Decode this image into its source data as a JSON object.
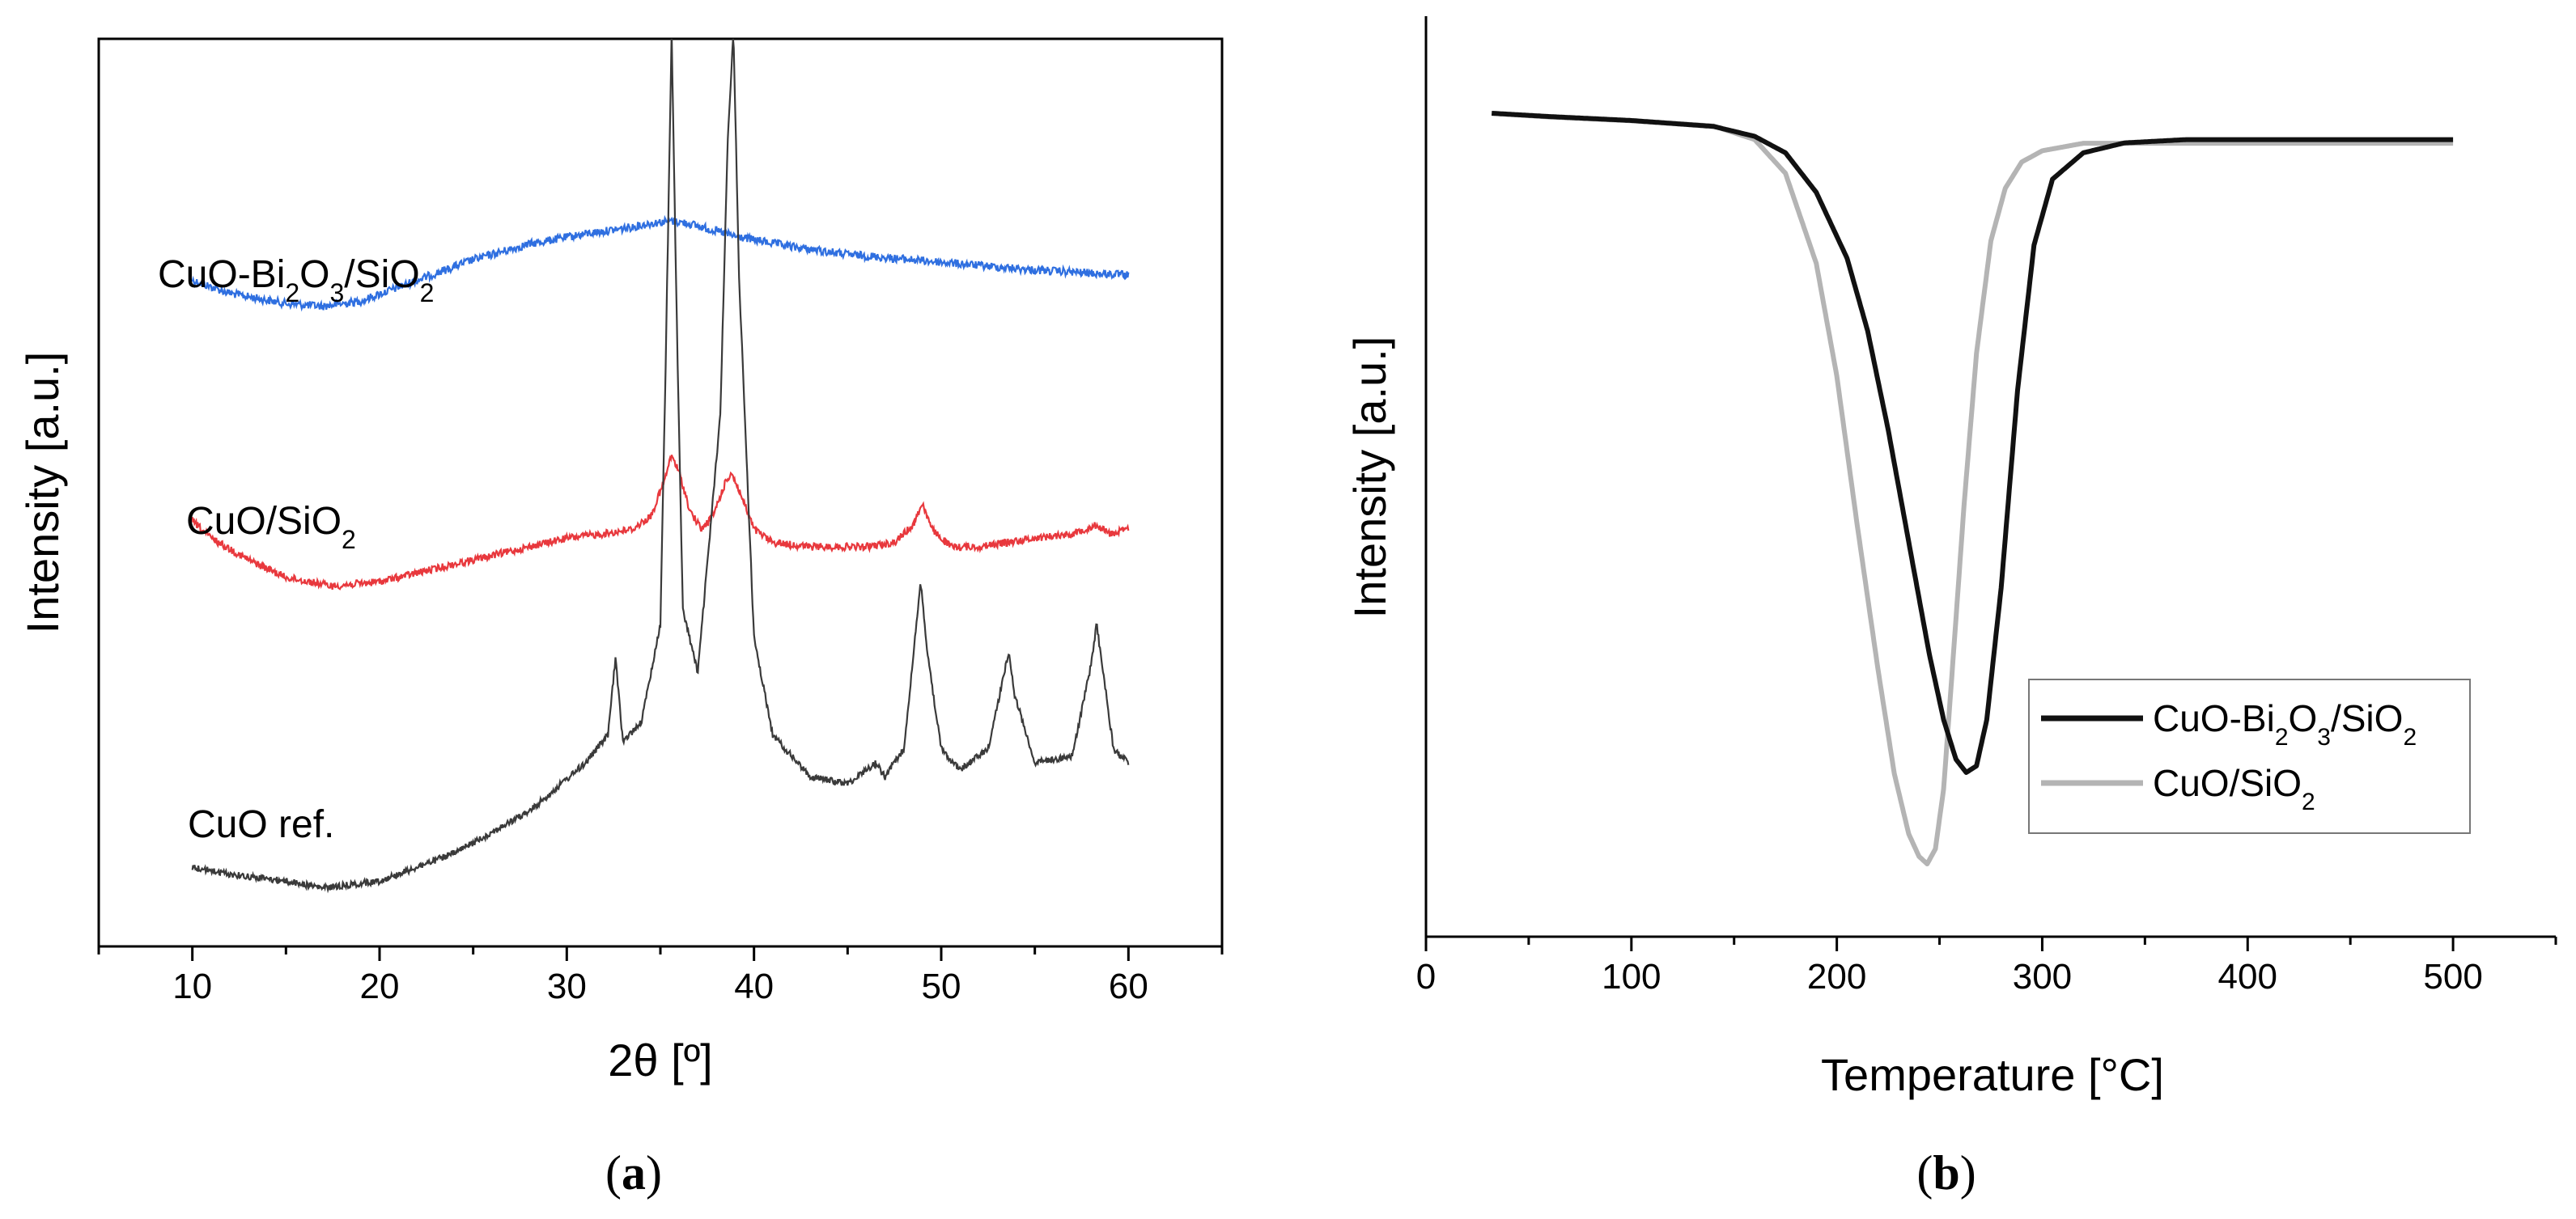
{
  "chart_data": [
    {
      "type": "line",
      "panel_label": "a",
      "xlabel": "2θ [º]",
      "ylabel": "Intensity [a.u.]",
      "xlim": [
        5,
        65
      ],
      "xticks": [
        "10",
        "20",
        "30",
        "40",
        "50",
        "60"
      ],
      "y_ticks_shown": false,
      "series": [
        {
          "name": "CuO-Bi2O3/SiO2",
          "label_parts": [
            "CuO-Bi",
            "2",
            "O",
            "3",
            "/SiO",
            "2"
          ],
          "color": "#2f6fe0",
          "x": [
            10,
            12,
            15,
            17,
            19,
            22,
            25,
            28,
            31,
            33,
            34.5,
            35.5,
            36.5,
            37.5,
            39,
            42,
            45,
            50,
            55,
            60
          ],
          "y": [
            62,
            57,
            53,
            52,
            54,
            62,
            70,
            76,
            80,
            82,
            84,
            85,
            84,
            82,
            79,
            75,
            72,
            69,
            66,
            64
          ]
        },
        {
          "name": "CuO/SiO2",
          "label_parts": [
            "CuO/SiO",
            "2"
          ],
          "color": "#e8383d",
          "x": [
            10,
            11,
            13,
            15,
            17.5,
            20,
            25,
            30,
            32,
            33.5,
            34.5,
            35.2,
            35.6,
            36,
            36.6,
            37.2,
            37.8,
            38.5,
            38.8,
            39.2,
            40,
            41,
            43,
            46,
            47.5,
            48.5,
            49,
            49.5,
            50.5,
            52,
            55,
            57,
            58.3,
            59,
            60
          ],
          "y": [
            41,
            37,
            32,
            28,
            26,
            27,
            32,
            37,
            38,
            39,
            42,
            50,
            56,
            52,
            43,
            39,
            42,
            50,
            52,
            48,
            39,
            36,
            35,
            35,
            36,
            40,
            45,
            39,
            35,
            35,
            37,
            38,
            40,
            38,
            39
          ]
        },
        {
          "name": "CuO ref.",
          "label_parts": [
            "CuO ref."
          ],
          "color": "#3a3a3a",
          "x": [
            10,
            12,
            15,
            17,
            20,
            24,
            28,
            31,
            32.2,
            32.6,
            33,
            34,
            35,
            35.3,
            35.6,
            35.9,
            36.2,
            37,
            38.2,
            38.6,
            38.9,
            39.2,
            40,
            41,
            43,
            45,
            46.5,
            47,
            48,
            48.5,
            48.9,
            49.3,
            50,
            51,
            52.5,
            53.3,
            53.6,
            53.9,
            55,
            57,
            58,
            58.3,
            58.6,
            59.2,
            60
          ],
          "y": [
            5,
            4,
            3,
            2,
            3,
            7,
            13,
            20,
            24,
            35,
            23,
            26,
            40,
            80,
            125,
            80,
            42,
            33,
            70,
            110,
            125,
            90,
            38,
            24,
            18,
            17,
            20,
            18,
            22,
            35,
            46,
            35,
            22,
            19,
            22,
            32,
            36,
            30,
            20,
            21,
            34,
            40,
            34,
            22,
            20
          ]
        }
      ]
    },
    {
      "type": "line",
      "panel_label": "b",
      "xlabel": "Temperature [°C]",
      "ylabel": "Intensity [a.u.]",
      "xlim": [
        0,
        550
      ],
      "xticks": [
        "0",
        "100",
        "200",
        "300",
        "400",
        "500"
      ],
      "y_ticks_shown": false,
      "legend": "bottom-right",
      "series": [
        {
          "name": "CuO-Bi2O3/SiO2",
          "label_parts": [
            "CuO-Bi",
            "2",
            "O",
            "3",
            "/SiO",
            "2"
          ],
          "color": "#111111",
          "x": [
            32,
            60,
            100,
            140,
            160,
            175,
            190,
            205,
            215,
            225,
            235,
            245,
            252,
            258,
            263,
            268,
            273,
            280,
            288,
            296,
            305,
            320,
            340,
            370,
            420,
            500
          ],
          "y": [
            100,
            99.5,
            98.9,
            98,
            96.5,
            94,
            88,
            78,
            67,
            52,
            35,
            18,
            8,
            2,
            0,
            1,
            8,
            28,
            58,
            80,
            90,
            94,
            95.5,
            96,
            96,
            96
          ]
        },
        {
          "name": "CuO/SiO2",
          "label_parts": [
            "CuO/SiO",
            "2"
          ],
          "color": "#b4b4b4",
          "x": [
            32,
            60,
            100,
            140,
            160,
            175,
            190,
            200,
            210,
            220,
            228,
            235,
            240,
            244,
            248,
            252,
            256,
            262,
            268,
            275,
            282,
            290,
            300,
            320,
            360,
            420,
            500
          ],
          "y": [
            100,
            99.5,
            99,
            98.3,
            96.5,
            92,
            80,
            65,
            45,
            26,
            12,
            4,
            1,
            0,
            2,
            10,
            25,
            48,
            68,
            83,
            90,
            93.5,
            95,
            96,
            96,
            96,
            96
          ]
        }
      ]
    }
  ]
}
